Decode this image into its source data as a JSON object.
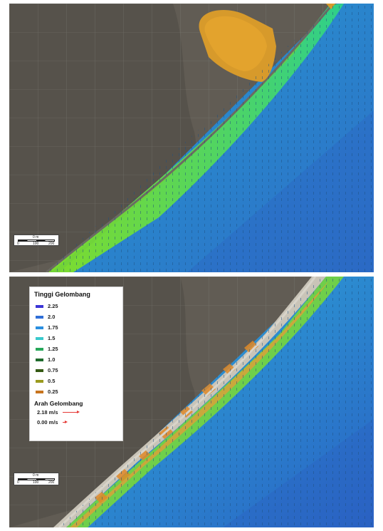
{
  "top_panel": {
    "scale_bar": {
      "top_label": "0 m",
      "bottom_labels": [
        "0",
        "100",
        "200"
      ]
    }
  },
  "bottom_panel": {
    "legend": {
      "title": "Tinggi Gelombang",
      "items": [
        {
          "label": "2.25",
          "color": "#3b35d6"
        },
        {
          "label": "2.0",
          "color": "#2f6fd8"
        },
        {
          "label": "1.75",
          "color": "#2a8fe0"
        },
        {
          "label": "1.5",
          "color": "#38c9cc"
        },
        {
          "label": "1.25",
          "color": "#27a85a"
        },
        {
          "label": "1.0",
          "color": "#1f6b2c"
        },
        {
          "label": "0.75",
          "color": "#355a14"
        },
        {
          "label": "0.5",
          "color": "#9a9a1e"
        },
        {
          "label": "0.25",
          "color": "#c8741e"
        }
      ],
      "arrow_title": "Arah Gelombang",
      "arrows": [
        {
          "label": "2.18 m/s",
          "length": 22
        },
        {
          "label": "0.00 m/s",
          "length": 5
        }
      ]
    },
    "scale_bar": {
      "top_label": "0 m",
      "bottom_labels": [
        "0",
        "100",
        "200"
      ]
    }
  }
}
